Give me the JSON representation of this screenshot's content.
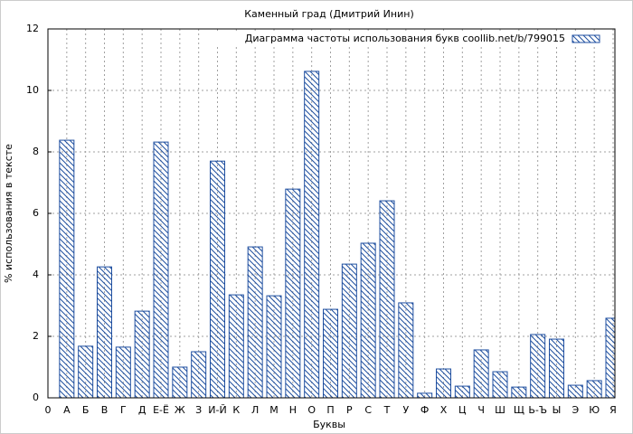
{
  "chart_data": {
    "type": "bar",
    "title": "Каменный град (Дмитрий Инин)",
    "x_label": "Буквы",
    "y_label": "% использования в тексте",
    "categories": [
      "0",
      "А",
      "Б",
      "В",
      "Г",
      "Д",
      "Е-Ё",
      "Ж",
      "З",
      "И-Й",
      "К",
      "Л",
      "М",
      "Н",
      "О",
      "П",
      "Р",
      "С",
      "Т",
      "У",
      "Ф",
      "Х",
      "Ц",
      "Ч",
      "Ш",
      "Щ",
      "Ь-Ъ",
      "Ы",
      "Э",
      "Ю",
      "Я"
    ],
    "series": [
      {
        "name": "Диаграмма частоты использования букв coollib.net/b/799015",
        "color": "#1f4fa0",
        "values": [
          null,
          8.38,
          1.68,
          4.26,
          1.65,
          2.82,
          8.32,
          1.0,
          1.5,
          7.7,
          3.35,
          4.91,
          3.32,
          6.79,
          10.62,
          2.88,
          4.35,
          5.03,
          6.41,
          3.09,
          0.15,
          0.94,
          0.38,
          1.56,
          0.85,
          0.35,
          2.06,
          1.91,
          0.41,
          0.56,
          2.59
        ]
      }
    ],
    "ylim": [
      0,
      12
    ],
    "yticks": [
      0,
      2,
      4,
      6,
      8,
      10,
      12
    ],
    "grid": true,
    "legend": "top-right"
  }
}
